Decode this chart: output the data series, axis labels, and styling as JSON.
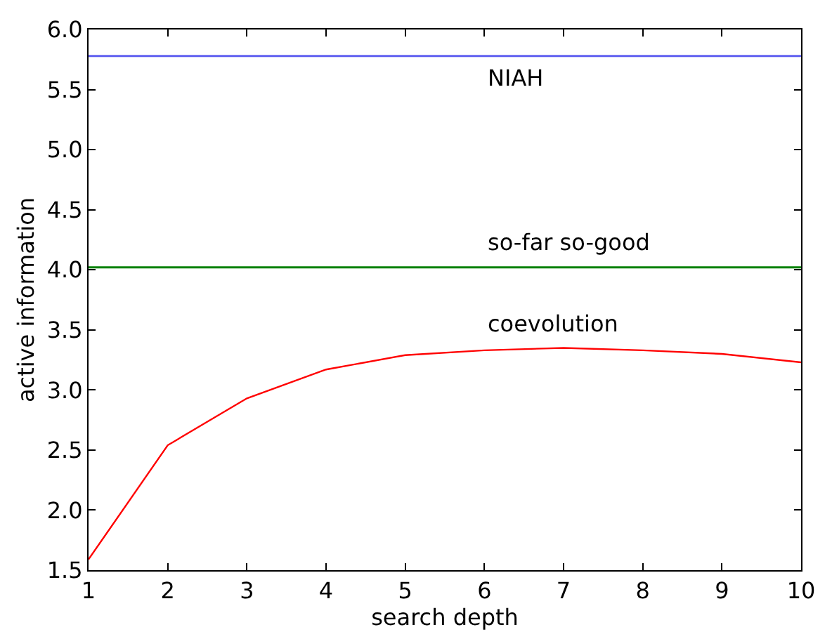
{
  "chart_data": {
    "type": "line",
    "xlabel": "search depth",
    "ylabel": "active information",
    "x": [
      1,
      2,
      3,
      4,
      5,
      6,
      7,
      8,
      9,
      10
    ],
    "series": [
      {
        "name": "coevolution",
        "color": "#ff0000",
        "values": [
          1.59,
          2.54,
          2.93,
          3.17,
          3.29,
          3.33,
          3.35,
          3.33,
          3.3,
          3.23
        ]
      }
    ],
    "ref_lines": [
      {
        "axis": "y",
        "value": 5.78,
        "label": "NIAH",
        "color": "#6060f0"
      },
      {
        "axis": "y",
        "value": 4.02,
        "label": "so-far so-good",
        "color": "#008000"
      }
    ],
    "xlim": [
      1,
      10
    ],
    "xticks": [
      1,
      2,
      3,
      4,
      5,
      6,
      7,
      8,
      9,
      10
    ],
    "ylim": [
      1.5,
      6.0
    ],
    "yticks": [
      {
        "value": 1.5,
        "label": "1.5"
      },
      {
        "value": 2.0,
        "label": "2.0"
      },
      {
        "value": 2.5,
        "label": "2.5"
      },
      {
        "value": 3.0,
        "label": "3.0"
      },
      {
        "value": 3.5,
        "label": "3.5"
      },
      {
        "value": 4.0,
        "label": "4.0"
      },
      {
        "value": 4.5,
        "label": "4.5"
      },
      {
        "value": 5.0,
        "label": "5.0"
      },
      {
        "value": 5.5,
        "label": "5.5"
      },
      {
        "value": 6.0,
        "label": "6.0"
      }
    ],
    "legend": false,
    "marker": "none",
    "line_style": "solid"
  }
}
